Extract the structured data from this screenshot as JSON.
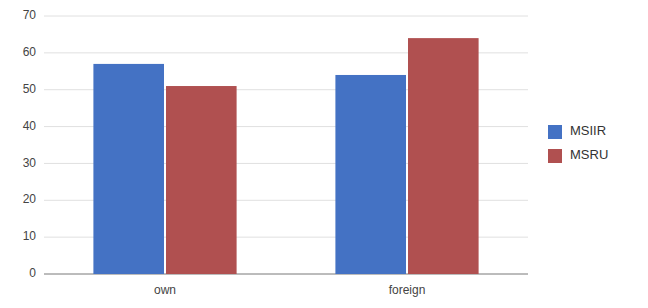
{
  "chart_data": {
    "type": "bar",
    "categories": [
      "own",
      "foreign"
    ],
    "series": [
      {
        "name": "MSIIR",
        "color": "#4472C4",
        "values": [
          57,
          54
        ]
      },
      {
        "name": "MSRU",
        "color": "#B05050",
        "values": [
          51,
          64
        ]
      }
    ],
    "ylim": [
      0,
      70
    ],
    "yticks": [
      0,
      10,
      20,
      30,
      40,
      50,
      60,
      70
    ],
    "grid": true,
    "legend": "right"
  }
}
